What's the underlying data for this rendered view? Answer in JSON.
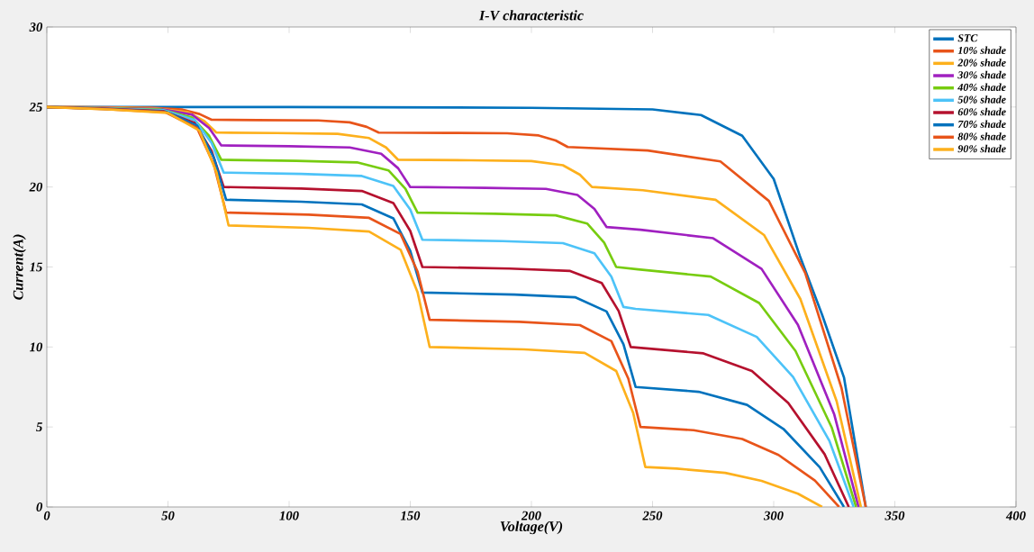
{
  "chart_data": {
    "type": "line",
    "title": "I-V characteristic",
    "xlabel": "Voltage(V)",
    "ylabel": "Current(A)",
    "xlim": [
      0,
      400
    ],
    "ylim": [
      0,
      30
    ],
    "xticks": [
      0,
      50,
      100,
      150,
      200,
      250,
      300,
      350,
      400
    ],
    "yticks": [
      0,
      5,
      10,
      15,
      20,
      25,
      30
    ],
    "grid": false,
    "legend": "top right",
    "marker": "none",
    "line_style": "solid",
    "series": [
      {
        "name": "STC",
        "color": "#0072bd",
        "x": [
          0,
          100,
          200,
          250,
          270,
          287,
          300,
          311,
          320,
          329,
          338
        ],
        "values": [
          25,
          25,
          24.95,
          24.85,
          24.5,
          23.2,
          20.5,
          15.6,
          12,
          8.1,
          0
        ]
      },
      {
        "name": "10% shade",
        "color": "#e8541a",
        "x": [
          0,
          18,
          43,
          56,
          63,
          68,
          87,
          112,
          125,
          132,
          137,
          165,
          190,
          203,
          210,
          215,
          248,
          278,
          298,
          313,
          328,
          338
        ],
        "values": [
          25,
          24.98,
          24.96,
          24.84,
          24.56,
          24.2,
          24.18,
          24.16,
          24.04,
          23.76,
          23.4,
          23.38,
          23.36,
          23.22,
          22.91,
          22.5,
          22.28,
          21.6,
          19.13,
          14.63,
          7.43,
          0
        ]
      },
      {
        "name": "20% shade",
        "color": "#fdb01c",
        "x": [
          0,
          20,
          45,
          58,
          65,
          70,
          95,
          120,
          133,
          140,
          145,
          175,
          200,
          213,
          220,
          225,
          246,
          276,
          296,
          311,
          326,
          336
        ],
        "values": [
          25,
          24.97,
          24.92,
          24.68,
          24.12,
          23.4,
          23.37,
          23.32,
          23.06,
          22.47,
          21.7,
          21.67,
          21.62,
          21.36,
          20.77,
          20.0,
          19.8,
          19.2,
          17.0,
          13.0,
          6.6,
          0
        ]
      },
      {
        "name": "30% shade",
        "color": "#a020c0",
        "x": [
          0,
          22,
          47,
          60,
          67,
          72,
          100,
          125,
          138,
          145,
          150,
          181,
          206,
          219,
          226,
          231,
          245,
          275,
          295,
          310,
          325,
          335
        ],
        "values": [
          25,
          24.95,
          24.88,
          24.52,
          23.68,
          22.6,
          22.55,
          22.47,
          22.08,
          21.17,
          20.0,
          19.95,
          19.88,
          19.5,
          18.63,
          17.5,
          17.33,
          16.8,
          14.88,
          11.38,
          5.78,
          0
        ]
      },
      {
        "name": "40% shade",
        "color": "#77cc10",
        "x": [
          0,
          22,
          47,
          60,
          67,
          72,
          103,
          128,
          141,
          148,
          153,
          185,
          210,
          223,
          230,
          235,
          244,
          274,
          294,
          309,
          324,
          334
        ],
        "values": [
          25,
          24.93,
          24.84,
          24.34,
          23.19,
          21.7,
          21.63,
          21.54,
          21.04,
          19.89,
          18.4,
          18.33,
          18.23,
          17.72,
          16.53,
          15.0,
          14.85,
          14.4,
          12.75,
          9.75,
          4.95,
          0
        ]
      },
      {
        "name": "50% shade",
        "color": "#4dc3f8",
        "x": [
          0,
          23,
          48,
          61,
          68,
          73,
          105,
          130,
          143,
          150,
          155,
          188,
          213,
          226,
          233,
          238,
          243,
          273,
          293,
          308,
          323,
          333
        ],
        "values": [
          25,
          24.92,
          24.8,
          24.18,
          22.75,
          20.9,
          20.82,
          20.69,
          20.06,
          18.59,
          16.7,
          16.62,
          16.49,
          15.86,
          14.39,
          12.5,
          12.38,
          12.0,
          10.63,
          8.13,
          4.13,
          0
        ]
      },
      {
        "name": "60% shade",
        "color": "#b5112e",
        "x": [
          0,
          23,
          48,
          61,
          68,
          73,
          105,
          130,
          143,
          150,
          155,
          191,
          216,
          229,
          236,
          241,
          271,
          291,
          306,
          321,
          331
        ],
        "values": [
          25,
          24.9,
          24.75,
          24.0,
          22.25,
          20.0,
          19.9,
          19.75,
          19.0,
          17.25,
          15.0,
          14.9,
          14.75,
          14.0,
          12.25,
          10.0,
          9.6,
          8.5,
          6.5,
          3.3,
          0
        ]
      },
      {
        "name": "70% shade",
        "color": "#0072bd",
        "x": [
          0,
          24,
          49,
          62,
          69,
          74,
          105,
          130,
          143,
          150,
          155,
          193,
          218,
          231,
          238,
          243,
          269,
          289,
          304,
          319,
          329
        ],
        "values": [
          25,
          24.88,
          24.71,
          23.84,
          21.81,
          19.2,
          19.08,
          18.91,
          18.04,
          16.01,
          13.4,
          13.28,
          13.11,
          12.22,
          10.16,
          7.5,
          7.2,
          6.38,
          4.88,
          2.48,
          0
        ]
      },
      {
        "name": "80% shade",
        "color": "#e8541a",
        "x": [
          0,
          24,
          49,
          62,
          69,
          74,
          108,
          133,
          146,
          153,
          158,
          195,
          220,
          233,
          240,
          245,
          267,
          287,
          302,
          317,
          327
        ],
        "values": [
          25,
          24.87,
          24.67,
          23.68,
          21.37,
          18.4,
          18.27,
          18.07,
          17.06,
          14.72,
          11.7,
          11.57,
          11.37,
          10.36,
          8.02,
          5.0,
          4.8,
          4.25,
          3.25,
          1.65,
          0
        ]
      },
      {
        "name": "90% shade",
        "color": "#fdb01c",
        "x": [
          0,
          25,
          50,
          63,
          70,
          75,
          108,
          133,
          146,
          153,
          158,
          197,
          222,
          235,
          242,
          247,
          260,
          280,
          295,
          310,
          320
        ],
        "values": [
          25,
          24.85,
          24.63,
          23.52,
          20.93,
          17.6,
          17.45,
          17.22,
          16.08,
          13.42,
          10.0,
          9.85,
          9.63,
          8.5,
          5.88,
          2.5,
          2.4,
          2.13,
          1.63,
          0.83,
          0
        ]
      }
    ]
  }
}
